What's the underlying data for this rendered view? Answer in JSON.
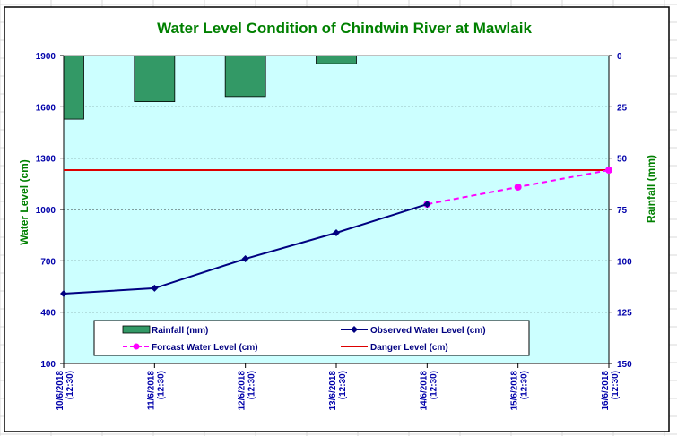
{
  "chart_data": {
    "type": "bar+line",
    "title": "Water Level Condition of Chindwin River at  Mawlaik",
    "ylabel": "Water Level (cm)",
    "y2label": "Rainfall (mm)",
    "ylim": [
      100,
      1900
    ],
    "yticks": [
      100,
      400,
      700,
      1000,
      1300,
      1600,
      1900
    ],
    "y2lim": [
      0,
      150
    ],
    "y2ticks": [
      0,
      25,
      50,
      75,
      100,
      125,
      150
    ],
    "y2_reversed": true,
    "grid": true,
    "legend_position": "bottom-inside",
    "categories": [
      "10/6/2018 (12:30)",
      "11/6/2018 (12:30)",
      "12/6/2018 (12:30)",
      "13/6/2018 (12:30)",
      "14/6/2018 (12:30)",
      "15/6/2018 (12:30)",
      "16/6/2018 (12:30)"
    ],
    "category_lines": [
      [
        "10/6/2018",
        "(12:30)"
      ],
      [
        "11/6/2018",
        "(12:30)"
      ],
      [
        "12/6/2018",
        "(12:30)"
      ],
      [
        "13/6/2018",
        "(12:30)"
      ],
      [
        "14/6/2018",
        "(12:30)"
      ],
      [
        "15/6/2018",
        "(12:30)"
      ],
      [
        "16/6/2018",
        "(12:30)"
      ]
    ],
    "series": [
      {
        "name": "Rainfall (mm)",
        "type": "bar",
        "axis": "right",
        "color": "#339966",
        "values": [
          31,
          22.5,
          20,
          4,
          null,
          null,
          null
        ]
      },
      {
        "name": "Observed Water Level (cm)",
        "type": "line",
        "color": "#000080",
        "values": [
          508,
          540,
          712,
          864,
          1031,
          null,
          null
        ]
      },
      {
        "name": "Forcast Water Level (cm)",
        "type": "line-dashed",
        "color": "#FF00FF",
        "values": [
          null,
          null,
          null,
          null,
          1031,
          1131,
          1230
        ]
      },
      {
        "name": "Danger Level (cm)",
        "type": "hline",
        "color": "#DD0000",
        "values": [
          1230,
          1230,
          1230,
          1230,
          1230,
          1230,
          1230
        ]
      }
    ]
  }
}
